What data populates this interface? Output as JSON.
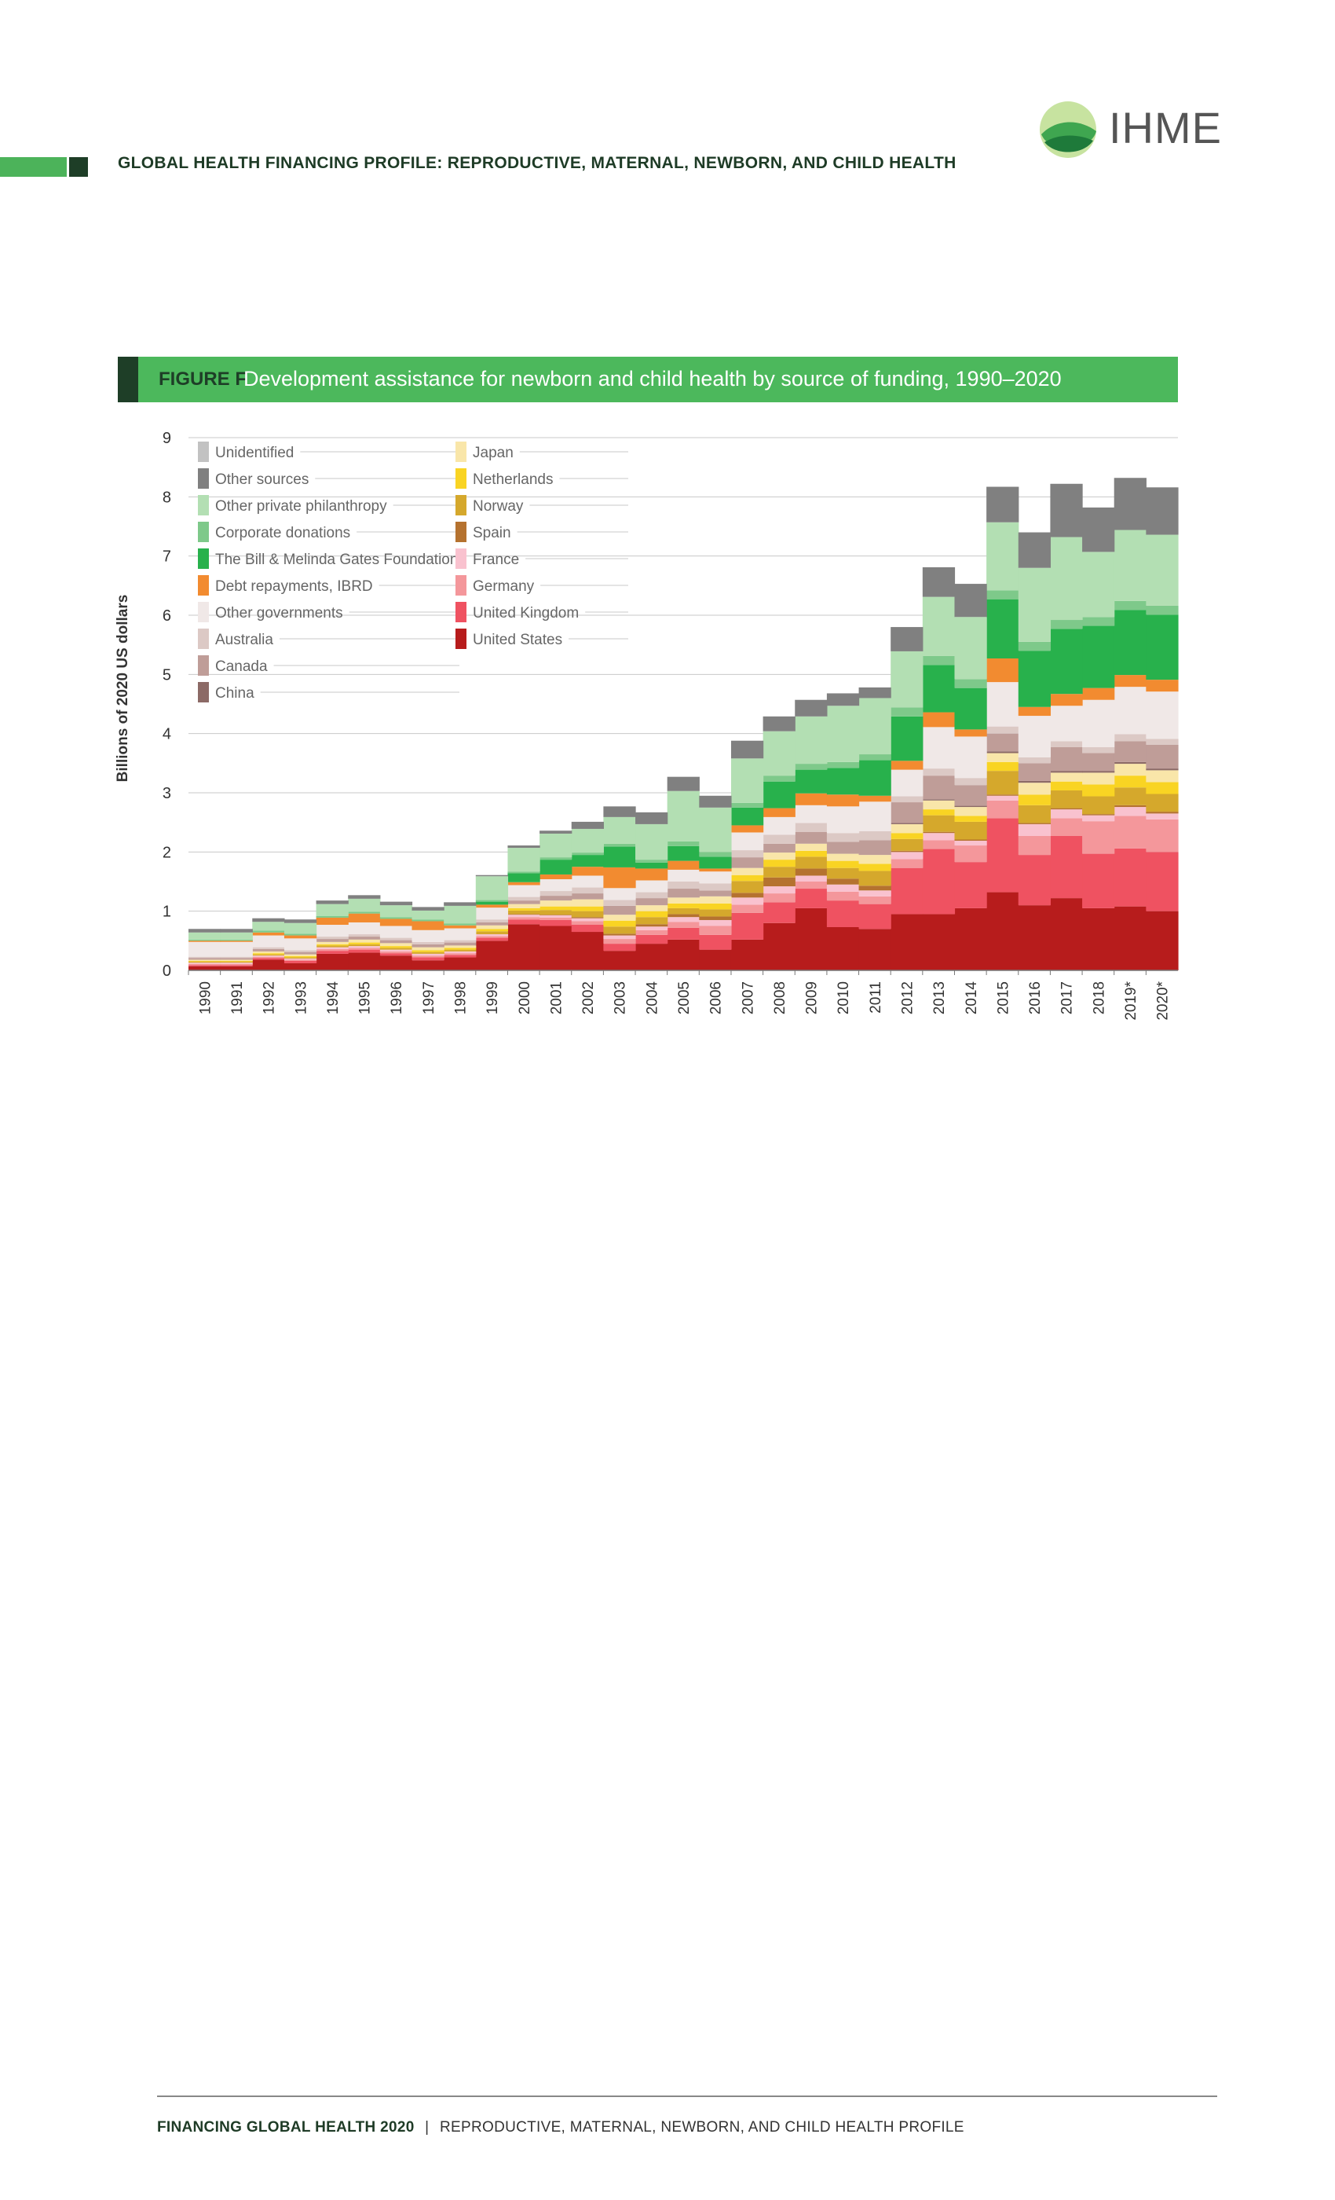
{
  "header": {
    "title": "GLOBAL HEALTH FINANCING PROFILE: REPRODUCTIVE, MATERNAL, NEWBORN, AND CHILD HEALTH",
    "logo_text": "IHME"
  },
  "figure": {
    "label": "FIGURE F",
    "title": "Development assistance for newborn and child health by source of funding, 1990–2020"
  },
  "footer": {
    "left": "FINANCING GLOBAL HEALTH 2020",
    "separator": "|",
    "right": "REPRODUCTIVE, MATERNAL, NEWBORN, AND CHILD HEALTH PROFILE"
  },
  "chart_data": {
    "type": "area",
    "stacked": true,
    "ylabel": "Billions of 2020 US dollars",
    "ylim": [
      0,
      9
    ],
    "yticks": [
      0,
      1,
      2,
      3,
      4,
      5,
      6,
      7,
      8,
      9
    ],
    "x": [
      "1990",
      "1991",
      "1992",
      "1993",
      "1994",
      "1995",
      "1996",
      "1997",
      "1998",
      "1999",
      "2000",
      "2001",
      "2002",
      "2003",
      "2004",
      "2005",
      "2006",
      "2007",
      "2008",
      "2009",
      "2010",
      "2011",
      "2012",
      "2013",
      "2014",
      "2015",
      "2016",
      "2017",
      "2018",
      "2019*",
      "2020*"
    ],
    "grid": "horizontal",
    "legend_position": "top-left",
    "series": [
      {
        "name": "United States",
        "color": "#b71c1c",
        "values": [
          0.07,
          0.07,
          0.18,
          0.12,
          0.28,
          0.3,
          0.25,
          0.17,
          0.22,
          0.5,
          0.78,
          0.75,
          0.65,
          0.33,
          0.45,
          0.52,
          0.35,
          0.52,
          0.8,
          1.05,
          0.73,
          0.7,
          0.95,
          0.95,
          1.05,
          1.32,
          1.1,
          1.22,
          1.05,
          1.08,
          1.0
        ]
      },
      {
        "name": "United Kingdom",
        "color": "#ef5261",
        "values": [
          0.02,
          0.02,
          0.03,
          0.04,
          0.05,
          0.05,
          0.04,
          0.05,
          0.04,
          0.05,
          0.08,
          0.1,
          0.12,
          0.12,
          0.15,
          0.2,
          0.25,
          0.45,
          0.35,
          0.33,
          0.45,
          0.42,
          0.78,
          1.1,
          0.78,
          1.25,
          0.85,
          1.05,
          0.92,
          0.98,
          1.0
        ]
      },
      {
        "name": "Germany",
        "color": "#f4979b",
        "values": [
          0.02,
          0.02,
          0.02,
          0.02,
          0.03,
          0.03,
          0.03,
          0.03,
          0.03,
          0.03,
          0.04,
          0.04,
          0.06,
          0.08,
          0.08,
          0.1,
          0.15,
          0.14,
          0.15,
          0.12,
          0.15,
          0.13,
          0.15,
          0.15,
          0.28,
          0.3,
          0.32,
          0.3,
          0.55,
          0.55,
          0.55
        ]
      },
      {
        "name": "France",
        "color": "#f9c2cf",
        "values": [
          0.02,
          0.02,
          0.02,
          0.02,
          0.03,
          0.03,
          0.03,
          0.03,
          0.03,
          0.03,
          0.04,
          0.04,
          0.05,
          0.06,
          0.06,
          0.08,
          0.1,
          0.12,
          0.12,
          0.1,
          0.12,
          0.1,
          0.12,
          0.12,
          0.08,
          0.08,
          0.2,
          0.15,
          0.1,
          0.15,
          0.1
        ]
      },
      {
        "name": "Spain",
        "color": "#b5722f",
        "values": [
          0.0,
          0.0,
          0.0,
          0.0,
          0.0,
          0.0,
          0.0,
          0.0,
          0.0,
          0.0,
          0.01,
          0.01,
          0.02,
          0.03,
          0.04,
          0.05,
          0.06,
          0.08,
          0.15,
          0.12,
          0.1,
          0.08,
          0.02,
          0.02,
          0.02,
          0.02,
          0.02,
          0.02,
          0.02,
          0.03,
          0.03
        ]
      },
      {
        "name": "Norway",
        "color": "#d5a82c",
        "values": [
          0.02,
          0.02,
          0.02,
          0.02,
          0.03,
          0.03,
          0.03,
          0.03,
          0.03,
          0.05,
          0.06,
          0.08,
          0.1,
          0.12,
          0.12,
          0.1,
          0.12,
          0.2,
          0.18,
          0.2,
          0.18,
          0.25,
          0.2,
          0.28,
          0.3,
          0.4,
          0.3,
          0.3,
          0.3,
          0.3,
          0.3
        ]
      },
      {
        "name": "Netherlands",
        "color": "#f9d423",
        "values": [
          0.01,
          0.01,
          0.02,
          0.02,
          0.02,
          0.03,
          0.03,
          0.03,
          0.03,
          0.04,
          0.04,
          0.06,
          0.08,
          0.1,
          0.1,
          0.08,
          0.1,
          0.1,
          0.12,
          0.1,
          0.12,
          0.12,
          0.1,
          0.1,
          0.1,
          0.15,
          0.18,
          0.15,
          0.2,
          0.2,
          0.2
        ]
      },
      {
        "name": "Japan",
        "color": "#f9e6a9",
        "values": [
          0.02,
          0.02,
          0.03,
          0.03,
          0.04,
          0.05,
          0.05,
          0.05,
          0.04,
          0.06,
          0.07,
          0.1,
          0.12,
          0.1,
          0.1,
          0.1,
          0.12,
          0.12,
          0.12,
          0.12,
          0.12,
          0.15,
          0.15,
          0.15,
          0.15,
          0.15,
          0.2,
          0.15,
          0.2,
          0.2,
          0.2
        ]
      },
      {
        "name": "China",
        "color": "#8c6a66",
        "values": [
          0.0,
          0.0,
          0.0,
          0.0,
          0.0,
          0.0,
          0.0,
          0.0,
          0.0,
          0.0,
          0.0,
          0.0,
          0.0,
          0.0,
          0.0,
          0.0,
          0.0,
          0.0,
          0.0,
          0.0,
          0.0,
          0.0,
          0.02,
          0.02,
          0.02,
          0.03,
          0.03,
          0.03,
          0.03,
          0.03,
          0.03
        ]
      },
      {
        "name": "Canada",
        "color": "#bf9d98",
        "values": [
          0.03,
          0.03,
          0.04,
          0.04,
          0.05,
          0.05,
          0.05,
          0.05,
          0.05,
          0.05,
          0.06,
          0.08,
          0.1,
          0.15,
          0.12,
          0.15,
          0.1,
          0.18,
          0.15,
          0.2,
          0.2,
          0.25,
          0.35,
          0.4,
          0.35,
          0.3,
          0.3,
          0.4,
          0.3,
          0.35,
          0.4
        ]
      },
      {
        "name": "Australia",
        "color": "#dcc9c5",
        "values": [
          0.02,
          0.02,
          0.03,
          0.03,
          0.04,
          0.04,
          0.04,
          0.04,
          0.04,
          0.05,
          0.06,
          0.08,
          0.1,
          0.1,
          0.1,
          0.12,
          0.12,
          0.12,
          0.15,
          0.15,
          0.15,
          0.15,
          0.1,
          0.12,
          0.12,
          0.12,
          0.1,
          0.1,
          0.1,
          0.12,
          0.1
        ]
      },
      {
        "name": "Other governments",
        "color": "#f0e8e7",
        "values": [
          0.25,
          0.25,
          0.2,
          0.2,
          0.2,
          0.2,
          0.2,
          0.2,
          0.2,
          0.2,
          0.2,
          0.2,
          0.2,
          0.2,
          0.2,
          0.2,
          0.2,
          0.3,
          0.3,
          0.3,
          0.45,
          0.5,
          0.45,
          0.7,
          0.7,
          0.75,
          0.7,
          0.6,
          0.8,
          0.8,
          0.8
        ]
      },
      {
        "name": "Debt repayments, IBRD",
        "color": "#f28b30",
        "values": [
          0.02,
          0.02,
          0.05,
          0.05,
          0.12,
          0.15,
          0.12,
          0.15,
          0.05,
          0.05,
          0.05,
          0.08,
          0.15,
          0.35,
          0.2,
          0.15,
          0.05,
          0.12,
          0.15,
          0.2,
          0.2,
          0.1,
          0.15,
          0.25,
          0.12,
          0.4,
          0.15,
          0.2,
          0.2,
          0.2,
          0.2
        ]
      },
      {
        "name": "The Bill & Melinda Gates Foundation",
        "color": "#28b14c",
        "values": [
          0.0,
          0.0,
          0.0,
          0.0,
          0.0,
          0.0,
          0.0,
          0.0,
          0.0,
          0.05,
          0.15,
          0.25,
          0.2,
          0.35,
          0.1,
          0.25,
          0.2,
          0.3,
          0.45,
          0.4,
          0.45,
          0.6,
          0.75,
          0.8,
          0.7,
          1.0,
          0.95,
          1.1,
          1.05,
          1.1,
          1.1
        ]
      },
      {
        "name": "Corporate donations",
        "color": "#7ec98a",
        "values": [
          0.02,
          0.02,
          0.03,
          0.03,
          0.03,
          0.03,
          0.03,
          0.03,
          0.03,
          0.03,
          0.03,
          0.04,
          0.04,
          0.05,
          0.05,
          0.08,
          0.08,
          0.08,
          0.1,
          0.1,
          0.1,
          0.1,
          0.15,
          0.15,
          0.15,
          0.15,
          0.15,
          0.15,
          0.15,
          0.15,
          0.15
        ]
      },
      {
        "name": "Other private philanthropy",
        "color": "#b3dfb3",
        "values": [
          0.12,
          0.12,
          0.15,
          0.18,
          0.2,
          0.22,
          0.2,
          0.15,
          0.3,
          0.4,
          0.4,
          0.4,
          0.4,
          0.45,
          0.6,
          0.85,
          0.75,
          0.75,
          0.75,
          0.8,
          0.95,
          0.95,
          0.95,
          1.0,
          1.05,
          1.15,
          1.25,
          1.4,
          1.1,
          1.2,
          1.2
        ]
      },
      {
        "name": "Other sources",
        "color": "#808080",
        "values": [
          0.06,
          0.06,
          0.06,
          0.06,
          0.06,
          0.06,
          0.06,
          0.06,
          0.06,
          0.02,
          0.04,
          0.05,
          0.12,
          0.18,
          0.2,
          0.24,
          0.2,
          0.3,
          0.25,
          0.28,
          0.21,
          0.18,
          0.41,
          0.5,
          0.56,
          0.6,
          0.6,
          0.9,
          0.75,
          0.88,
          0.8
        ]
      },
      {
        "name": "Unidentified",
        "color": "#c2c2c2",
        "values": [
          0.0,
          0.0,
          0.0,
          0.0,
          0.0,
          0.0,
          0.0,
          0.0,
          0.0,
          0.0,
          0.0,
          0.0,
          0.0,
          0.0,
          0.0,
          0.0,
          0.0,
          0.0,
          0.0,
          0.0,
          0.0,
          0.0,
          0.0,
          0.0,
          0.0,
          0.0,
          0.0,
          0.0,
          0.0,
          0.0,
          0.0
        ]
      }
    ],
    "legend_columns": [
      [
        "Unidentified",
        "Other sources",
        "Other private philanthropy",
        "Corporate donations",
        "The Bill & Melinda Gates Foundation",
        "Debt repayments, IBRD",
        "Other governments",
        "Australia",
        "Canada",
        "China"
      ],
      [
        "Japan",
        "Netherlands",
        "Norway",
        "Spain",
        "France",
        "Germany",
        "United Kingdom",
        "United States"
      ]
    ]
  }
}
